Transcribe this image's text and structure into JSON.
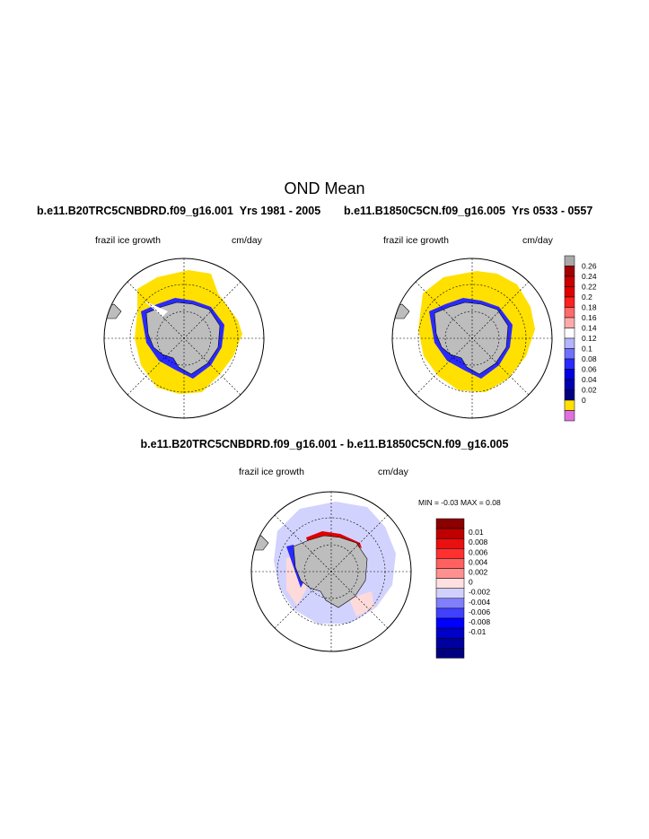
{
  "page_title": "OND Mean",
  "top_left": {
    "case": "b.e11.B20TRC5CNBDRD.f09_g16.001",
    "years": "Yrs 1981 - 2005",
    "field_label": "frazil ice growth",
    "units": "cm/day"
  },
  "top_right": {
    "case": "b.e11.B1850C5CN.f09_g16.005",
    "years": "Yrs 0533 - 0557",
    "field_label": "frazil ice growth",
    "units": "cm/day"
  },
  "diff_panel": {
    "title": "b.e11.B20TRC5CNBDRD.f09_g16.001 - b.e11.B1850C5CN.f09_g16.005",
    "field_label": "frazil ice growth",
    "units": "cm/day",
    "min_label": "MIN =",
    "min_value": "-0.03",
    "max_label": "MAX =",
    "max_value": "0.08"
  },
  "main_colorbar": {
    "labels": [
      "0.26",
      "0.24",
      "0.22",
      "0.2",
      "0.18",
      "0.16",
      "0.14",
      "0.12",
      "0.1",
      "0.08",
      "0.06",
      "0.04",
      "0.02",
      "0"
    ],
    "colors": [
      "#a9a9a9",
      "#a50000",
      "#c80000",
      "#e00000",
      "#ff2020",
      "#ff6a6a",
      "#ffaaaa",
      "#ffffff",
      "#b4b4ff",
      "#7070ff",
      "#2a2aff",
      "#0000e0",
      "#0000b0",
      "#000080",
      "#ffe000",
      "#e070e0"
    ]
  },
  "diff_colorbar": {
    "labels": [
      "0.01",
      "0.008",
      "0.006",
      "0.004",
      "0.002",
      "0",
      "-0.002",
      "-0.004",
      "-0.006",
      "-0.008",
      "-0.01"
    ],
    "colors": [
      "#8b0000",
      "#c00000",
      "#e81010",
      "#ff3030",
      "#ff6060",
      "#ff9090",
      "#ffe0e0",
      "#d0d0ff",
      "#8080ff",
      "#4040ff",
      "#0000ff",
      "#0000c8",
      "#0000a0",
      "#000080"
    ]
  },
  "map_colors": {
    "land": "#bdbdbd",
    "frazil_zero": "#ffe000",
    "diff_positive_light": "#ffdada",
    "diff_negative_light": "#d2d2ff"
  }
}
